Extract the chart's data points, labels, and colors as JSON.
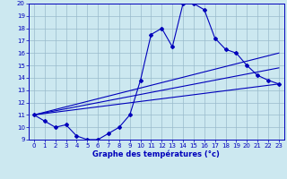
{
  "xlabel": "Graphe des températures (°c)",
  "bg_color": "#cce8f0",
  "line_color": "#0000bb",
  "grid_color": "#99bbcc",
  "xlim": [
    -0.5,
    23.5
  ],
  "ylim": [
    9,
    20
  ],
  "xticks": [
    0,
    1,
    2,
    3,
    4,
    5,
    6,
    7,
    8,
    9,
    10,
    11,
    12,
    13,
    14,
    15,
    16,
    17,
    18,
    19,
    20,
    21,
    22,
    23
  ],
  "yticks": [
    9,
    10,
    11,
    12,
    13,
    14,
    15,
    16,
    17,
    18,
    19,
    20
  ],
  "main_x": [
    0,
    1,
    2,
    3,
    4,
    5,
    6,
    7,
    8,
    9,
    10,
    11,
    12,
    13,
    14,
    15,
    16,
    17,
    18,
    19,
    20,
    21,
    22,
    23
  ],
  "main_y": [
    11.0,
    10.5,
    10.0,
    10.2,
    9.3,
    9.0,
    9.0,
    9.5,
    10.0,
    11.0,
    13.8,
    17.5,
    18.0,
    16.5,
    20.0,
    20.0,
    19.5,
    17.2,
    16.3,
    16.0,
    15.0,
    14.2,
    13.8,
    13.5
  ],
  "line2_x": [
    0,
    23
  ],
  "line2_y": [
    11.0,
    13.5
  ],
  "line3_x": [
    0,
    23
  ],
  "line3_y": [
    11.0,
    14.8
  ],
  "line4_x": [
    0,
    23
  ],
  "line4_y": [
    11.0,
    16.0
  ]
}
